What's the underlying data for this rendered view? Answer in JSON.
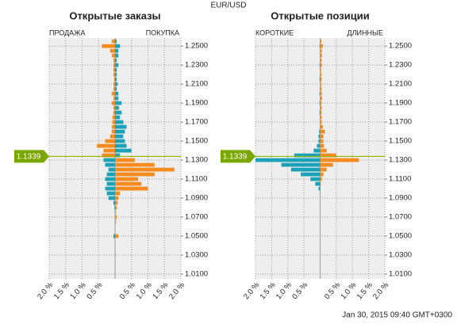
{
  "header": "EUR/USD",
  "timestamp": "Jan 30, 2015 09:40 GMT+0300",
  "chart_data": [
    {
      "type": "bar",
      "title": "Открытые заказы",
      "x": [
        1.03,
        1.035,
        1.04,
        1.045,
        1.05,
        1.055,
        1.06,
        1.065,
        1.07,
        1.075,
        1.08,
        1.085,
        1.09,
        1.095,
        1.1,
        1.105,
        1.11,
        1.115,
        1.12,
        1.125,
        1.13,
        1.135,
        1.14,
        1.145,
        1.15,
        1.155,
        1.16,
        1.165,
        1.17,
        1.175,
        1.18,
        1.185,
        1.19,
        1.195,
        1.2,
        1.205,
        1.21,
        1.215,
        1.22,
        1.225,
        1.23,
        1.235,
        1.24,
        1.245,
        1.25,
        1.255
      ],
      "series": [
        {
          "name": "ПРОДАЖА",
          "color_above": "#f68b1f",
          "color_below": "#1ba1b8",
          "values": [
            0,
            0,
            0,
            0,
            -0.05,
            0,
            0,
            0,
            0,
            0,
            -0.02,
            -0.05,
            -0.2,
            -0.25,
            -0.3,
            -0.25,
            -0.3,
            -0.25,
            -0.2,
            -0.3,
            -0.35,
            -0.4,
            -0.35,
            -0.55,
            -0.3,
            -0.15,
            -0.1,
            -0.1,
            -0.08,
            -0.08,
            -0.05,
            -0.05,
            -0.1,
            -0.05,
            -0.1,
            -0.05,
            -0.05,
            -0.03,
            -0.05,
            -0.05,
            -0.05,
            -0.05,
            -0.1,
            -0.15,
            -0.4,
            -0.1
          ]
        },
        {
          "name": "ПОКУПКА",
          "color_above": "#1ba1b8",
          "color_below": "#f68b1f",
          "values": [
            0.02,
            0,
            0,
            0,
            0.1,
            0,
            0,
            0.03,
            0.05,
            0.03,
            0.05,
            0.08,
            0.1,
            0.15,
            1.0,
            0.8,
            0.7,
            1.2,
            1.8,
            1.2,
            0.6,
            0.15,
            0.5,
            0.35,
            0.3,
            0.25,
            0.3,
            0.35,
            0.25,
            0.15,
            0.2,
            0.12,
            0.2,
            0.1,
            0.1,
            0.05,
            0.08,
            0.05,
            0.05,
            0.05,
            0.1,
            0.05,
            0.1,
            0.1,
            0.15,
            0.05
          ]
        }
      ],
      "current_price": 1.1339,
      "xlim": [
        -2,
        2
      ],
      "xticks": [
        {
          "value": -2,
          "label": "2.0 %"
        },
        {
          "value": -1.5,
          "label": "1.5 %"
        },
        {
          "value": -1,
          "label": "1.0 %"
        },
        {
          "value": -0.5,
          "label": "0.5 %"
        },
        {
          "value": 0.5,
          "label": "0.5 %"
        },
        {
          "value": 1,
          "label": "1.0 %"
        },
        {
          "value": 1.5,
          "label": "1.5 %"
        },
        {
          "value": 2,
          "label": "2.0 %"
        }
      ],
      "ylim": [
        1.005,
        1.2585
      ],
      "yticks": [
        {
          "value": 1.01,
          "label": "1.0100"
        },
        {
          "value": 1.03,
          "label": "1.0300"
        },
        {
          "value": 1.05,
          "label": "1.0500"
        },
        {
          "value": 1.07,
          "label": "1.0700"
        },
        {
          "value": 1.09,
          "label": "1.0900"
        },
        {
          "value": 1.11,
          "label": "1.1100"
        },
        {
          "value": 1.13,
          "label": "1.1300"
        },
        {
          "value": 1.15,
          "label": "1.1500"
        },
        {
          "value": 1.17,
          "label": "1.1700"
        },
        {
          "value": 1.19,
          "label": "1.1900"
        },
        {
          "value": 1.21,
          "label": "1.2100"
        },
        {
          "value": 1.23,
          "label": "1.2300"
        },
        {
          "value": 1.25,
          "label": "1.2500"
        }
      ],
      "grid": true
    },
    {
      "type": "bar",
      "title": "Открытые позиции",
      "x": [
        1.03,
        1.035,
        1.04,
        1.045,
        1.05,
        1.055,
        1.06,
        1.065,
        1.07,
        1.075,
        1.08,
        1.085,
        1.09,
        1.095,
        1.1,
        1.105,
        1.11,
        1.115,
        1.12,
        1.125,
        1.13,
        1.135,
        1.14,
        1.145,
        1.15,
        1.155,
        1.16,
        1.165,
        1.17,
        1.175,
        1.18,
        1.185,
        1.19,
        1.195,
        1.2,
        1.205,
        1.21,
        1.215,
        1.22,
        1.225,
        1.23,
        1.235,
        1.24,
        1.245,
        1.25,
        1.255
      ],
      "series": [
        {
          "name": "КОРОТКИЕ",
          "color_above": "#1ba1b8",
          "color_below": "#1ba1b8",
          "values": [
            0,
            0,
            0,
            0,
            0,
            0,
            0,
            0,
            0,
            0,
            0,
            0,
            0,
            0,
            -0.05,
            -0.15,
            -0.3,
            -0.6,
            -0.9,
            -1.2,
            -2.0,
            -0.8,
            -0.2,
            -0.1,
            -0.05,
            -0.05,
            -0.03,
            0,
            0,
            0,
            -0.02,
            0,
            -0.02,
            0,
            -0.02,
            0,
            0,
            -0.02,
            0,
            0,
            -0.02,
            0,
            0,
            0,
            -0.02,
            0
          ]
        },
        {
          "name": "ДЛИННЫЕ",
          "color_above": "#f68b1f",
          "color_below": "#f68b1f",
          "values": [
            0,
            0,
            0,
            0,
            0,
            0,
            0,
            0,
            0,
            0,
            0,
            0,
            0,
            0,
            0,
            0.02,
            0.05,
            0.1,
            0.2,
            0.4,
            1.2,
            0.5,
            0.2,
            0.12,
            0.1,
            0.1,
            0.15,
            0.08,
            0.05,
            0.05,
            0.04,
            0.05,
            0.04,
            0.06,
            0.05,
            0.04,
            0.03,
            0.05,
            0.04,
            0.03,
            0.05,
            0.04,
            0.06,
            0.05,
            0.08,
            0.04
          ]
        }
      ],
      "current_price": 1.1339,
      "xlim": [
        -2,
        2
      ],
      "xticks": [
        {
          "value": -2,
          "label": "2.0 %"
        },
        {
          "value": -1.5,
          "label": "1.5 %"
        },
        {
          "value": -1,
          "label": "1.0 %"
        },
        {
          "value": -0.5,
          "label": "0.5 %"
        },
        {
          "value": 0.5,
          "label": "0.5 %"
        },
        {
          "value": 1,
          "label": "1.0 %"
        },
        {
          "value": 1.5,
          "label": "1.5 %"
        },
        {
          "value": 2,
          "label": "2.0 %"
        }
      ],
      "ylim": [
        1.005,
        1.2585
      ],
      "yticks": [
        {
          "value": 1.01,
          "label": "1.0100"
        },
        {
          "value": 1.03,
          "label": "1.0300"
        },
        {
          "value": 1.05,
          "label": "1.0500"
        },
        {
          "value": 1.07,
          "label": "1.0700"
        },
        {
          "value": 1.09,
          "label": "1.0900"
        },
        {
          "value": 1.11,
          "label": "1.1100"
        },
        {
          "value": 1.13,
          "label": "1.1300"
        },
        {
          "value": 1.15,
          "label": "1.1500"
        },
        {
          "value": 1.17,
          "label": "1.1700"
        },
        {
          "value": 1.19,
          "label": "1.1900"
        },
        {
          "value": 1.21,
          "label": "1.2100"
        },
        {
          "value": 1.23,
          "label": "1.2300"
        },
        {
          "value": 1.25,
          "label": "1.2500"
        }
      ],
      "grid": true
    }
  ]
}
